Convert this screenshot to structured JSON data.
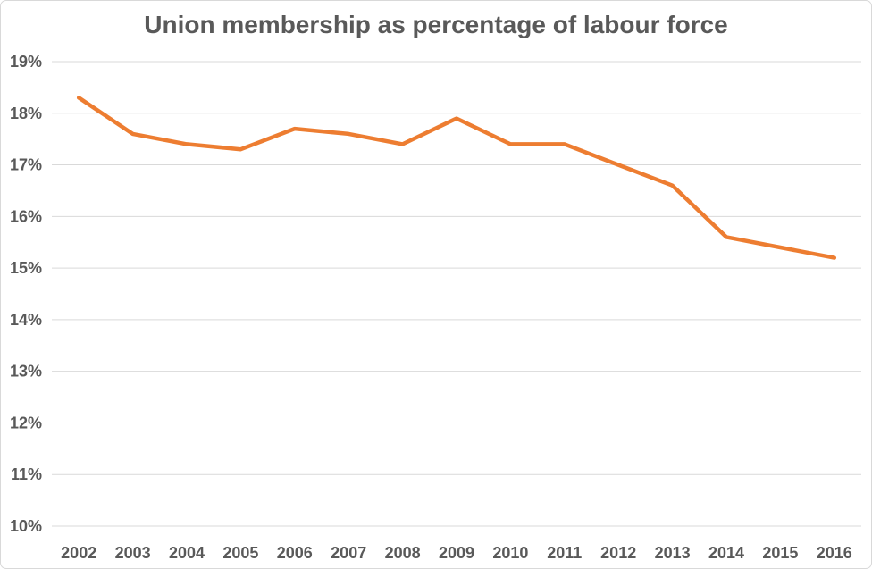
{
  "chart_data": {
    "type": "line",
    "title": "Union membership as percentage of labour force",
    "xlabel": "",
    "ylabel": "",
    "categories": [
      "2002",
      "2003",
      "2004",
      "2005",
      "2006",
      "2007",
      "2008",
      "2009",
      "2010",
      "2011",
      "2012",
      "2013",
      "2014",
      "2015",
      "2016"
    ],
    "series": [
      {
        "name": "Union membership as percentage of labour force",
        "values": [
          18.3,
          17.6,
          17.4,
          17.3,
          17.7,
          17.6,
          17.4,
          17.9,
          17.4,
          17.4,
          17.0,
          16.6,
          15.6,
          15.4,
          15.2
        ]
      }
    ],
    "ylim": [
      10,
      19
    ],
    "y_ticks": [
      {
        "value": 19,
        "label": "19%"
      },
      {
        "value": 18,
        "label": "18%"
      },
      {
        "value": 17,
        "label": "17%"
      },
      {
        "value": 16,
        "label": "16%"
      },
      {
        "value": 15,
        "label": "15%"
      },
      {
        "value": 14,
        "label": "14%"
      },
      {
        "value": 13,
        "label": "13%"
      },
      {
        "value": 12,
        "label": "12%"
      },
      {
        "value": 11,
        "label": "11%"
      },
      {
        "value": 10,
        "label": "10%"
      }
    ],
    "grid": true,
    "legend": false,
    "colors": {
      "line": "#ED7D31",
      "text": "#595959",
      "grid": "#D9D9D9",
      "border": "#D9D9D9",
      "background": "#FFFFFF"
    }
  }
}
